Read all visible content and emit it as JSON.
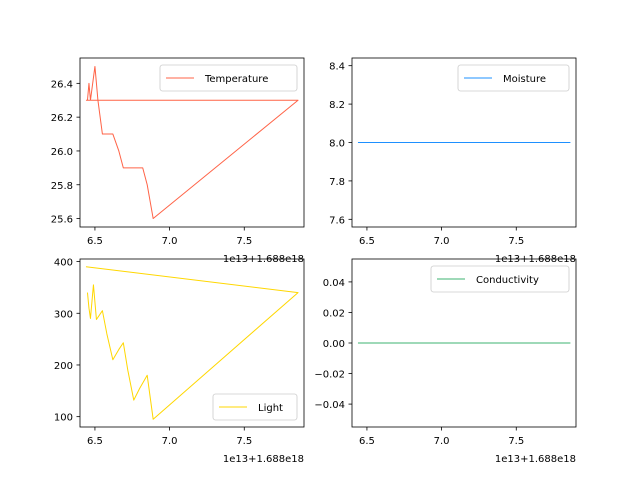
{
  "chart_data": [
    {
      "type": "line",
      "title": "",
      "xlabel": "",
      "ylabel": "",
      "x_offset_label": "1e13+1.688e18",
      "xlim": [
        6.4,
        7.9
      ],
      "ylim": [
        25.55,
        26.55
      ],
      "xticks": [
        "6.5",
        "7.0",
        "7.5"
      ],
      "yticks": [
        "25.6",
        "25.8",
        "26.0",
        "26.2",
        "26.4"
      ],
      "legend_position": "upper right",
      "series": [
        {
          "name": "Temperature",
          "color": "#ff6347",
          "x": [
            6.45,
            6.46,
            6.47,
            6.5,
            6.51,
            6.52,
            6.55,
            6.58,
            6.62,
            6.66,
            6.69,
            6.72,
            6.76,
            6.82,
            6.85,
            6.89,
            7.86,
            6.44
          ],
          "y": [
            26.3,
            26.4,
            26.3,
            26.5,
            26.4,
            26.3,
            26.1,
            26.1,
            26.1,
            26.0,
            25.9,
            25.9,
            25.9,
            25.9,
            25.8,
            25.6,
            26.3,
            26.3
          ]
        }
      ]
    },
    {
      "type": "line",
      "title": "",
      "xlabel": "",
      "ylabel": "",
      "x_offset_label": "1e13+1.688e18",
      "xlim": [
        6.4,
        7.9
      ],
      "ylim": [
        7.56,
        8.44
      ],
      "xticks": [
        "6.5",
        "7.0",
        "7.5"
      ],
      "yticks": [
        "7.6",
        "7.8",
        "8.0",
        "8.2",
        "8.4"
      ],
      "legend_position": "upper right",
      "series": [
        {
          "name": "Moisture",
          "color": "#1e90ff",
          "x": [
            6.45,
            6.6,
            6.75,
            6.89,
            7.86,
            6.44
          ],
          "y": [
            8.0,
            8.0,
            8.0,
            8.0,
            8.0,
            8.0
          ]
        }
      ]
    },
    {
      "type": "line",
      "title": "",
      "xlabel": "",
      "ylabel": "",
      "x_offset_label": "1e13+1.688e18",
      "xlim": [
        6.4,
        7.9
      ],
      "ylim": [
        80,
        405
      ],
      "xticks": [
        "6.5",
        "7.0",
        "7.5"
      ],
      "yticks": [
        "100",
        "200",
        "300",
        "400"
      ],
      "legend_position": "lower right",
      "series": [
        {
          "name": "Light",
          "color": "#ffd700",
          "x": [
            6.45,
            6.46,
            6.47,
            6.49,
            6.51,
            6.55,
            6.58,
            6.62,
            6.66,
            6.69,
            6.72,
            6.76,
            6.8,
            6.85,
            6.89,
            7.86,
            6.44
          ],
          "y": [
            340,
            310,
            290,
            355,
            288,
            305,
            260,
            210,
            230,
            243,
            190,
            132,
            155,
            180,
            95,
            340,
            390
          ]
        }
      ]
    },
    {
      "type": "line",
      "title": "",
      "xlabel": "",
      "ylabel": "",
      "x_offset_label": "1e13+1.688e18",
      "xlim": [
        6.4,
        7.9
      ],
      "ylim": [
        -0.055,
        0.055
      ],
      "xticks": [
        "6.5",
        "7.0",
        "7.5"
      ],
      "yticks": [
        "−0.04",
        "−0.02",
        "0.00",
        "0.02",
        "0.04"
      ],
      "legend_position": "upper right",
      "series": [
        {
          "name": "Conductivity",
          "color": "#3cb371",
          "x": [
            6.45,
            6.6,
            6.75,
            6.89,
            7.86,
            6.44
          ],
          "y": [
            0.0,
            0.0,
            0.0,
            0.0,
            0.0,
            0.0
          ]
        }
      ]
    }
  ]
}
